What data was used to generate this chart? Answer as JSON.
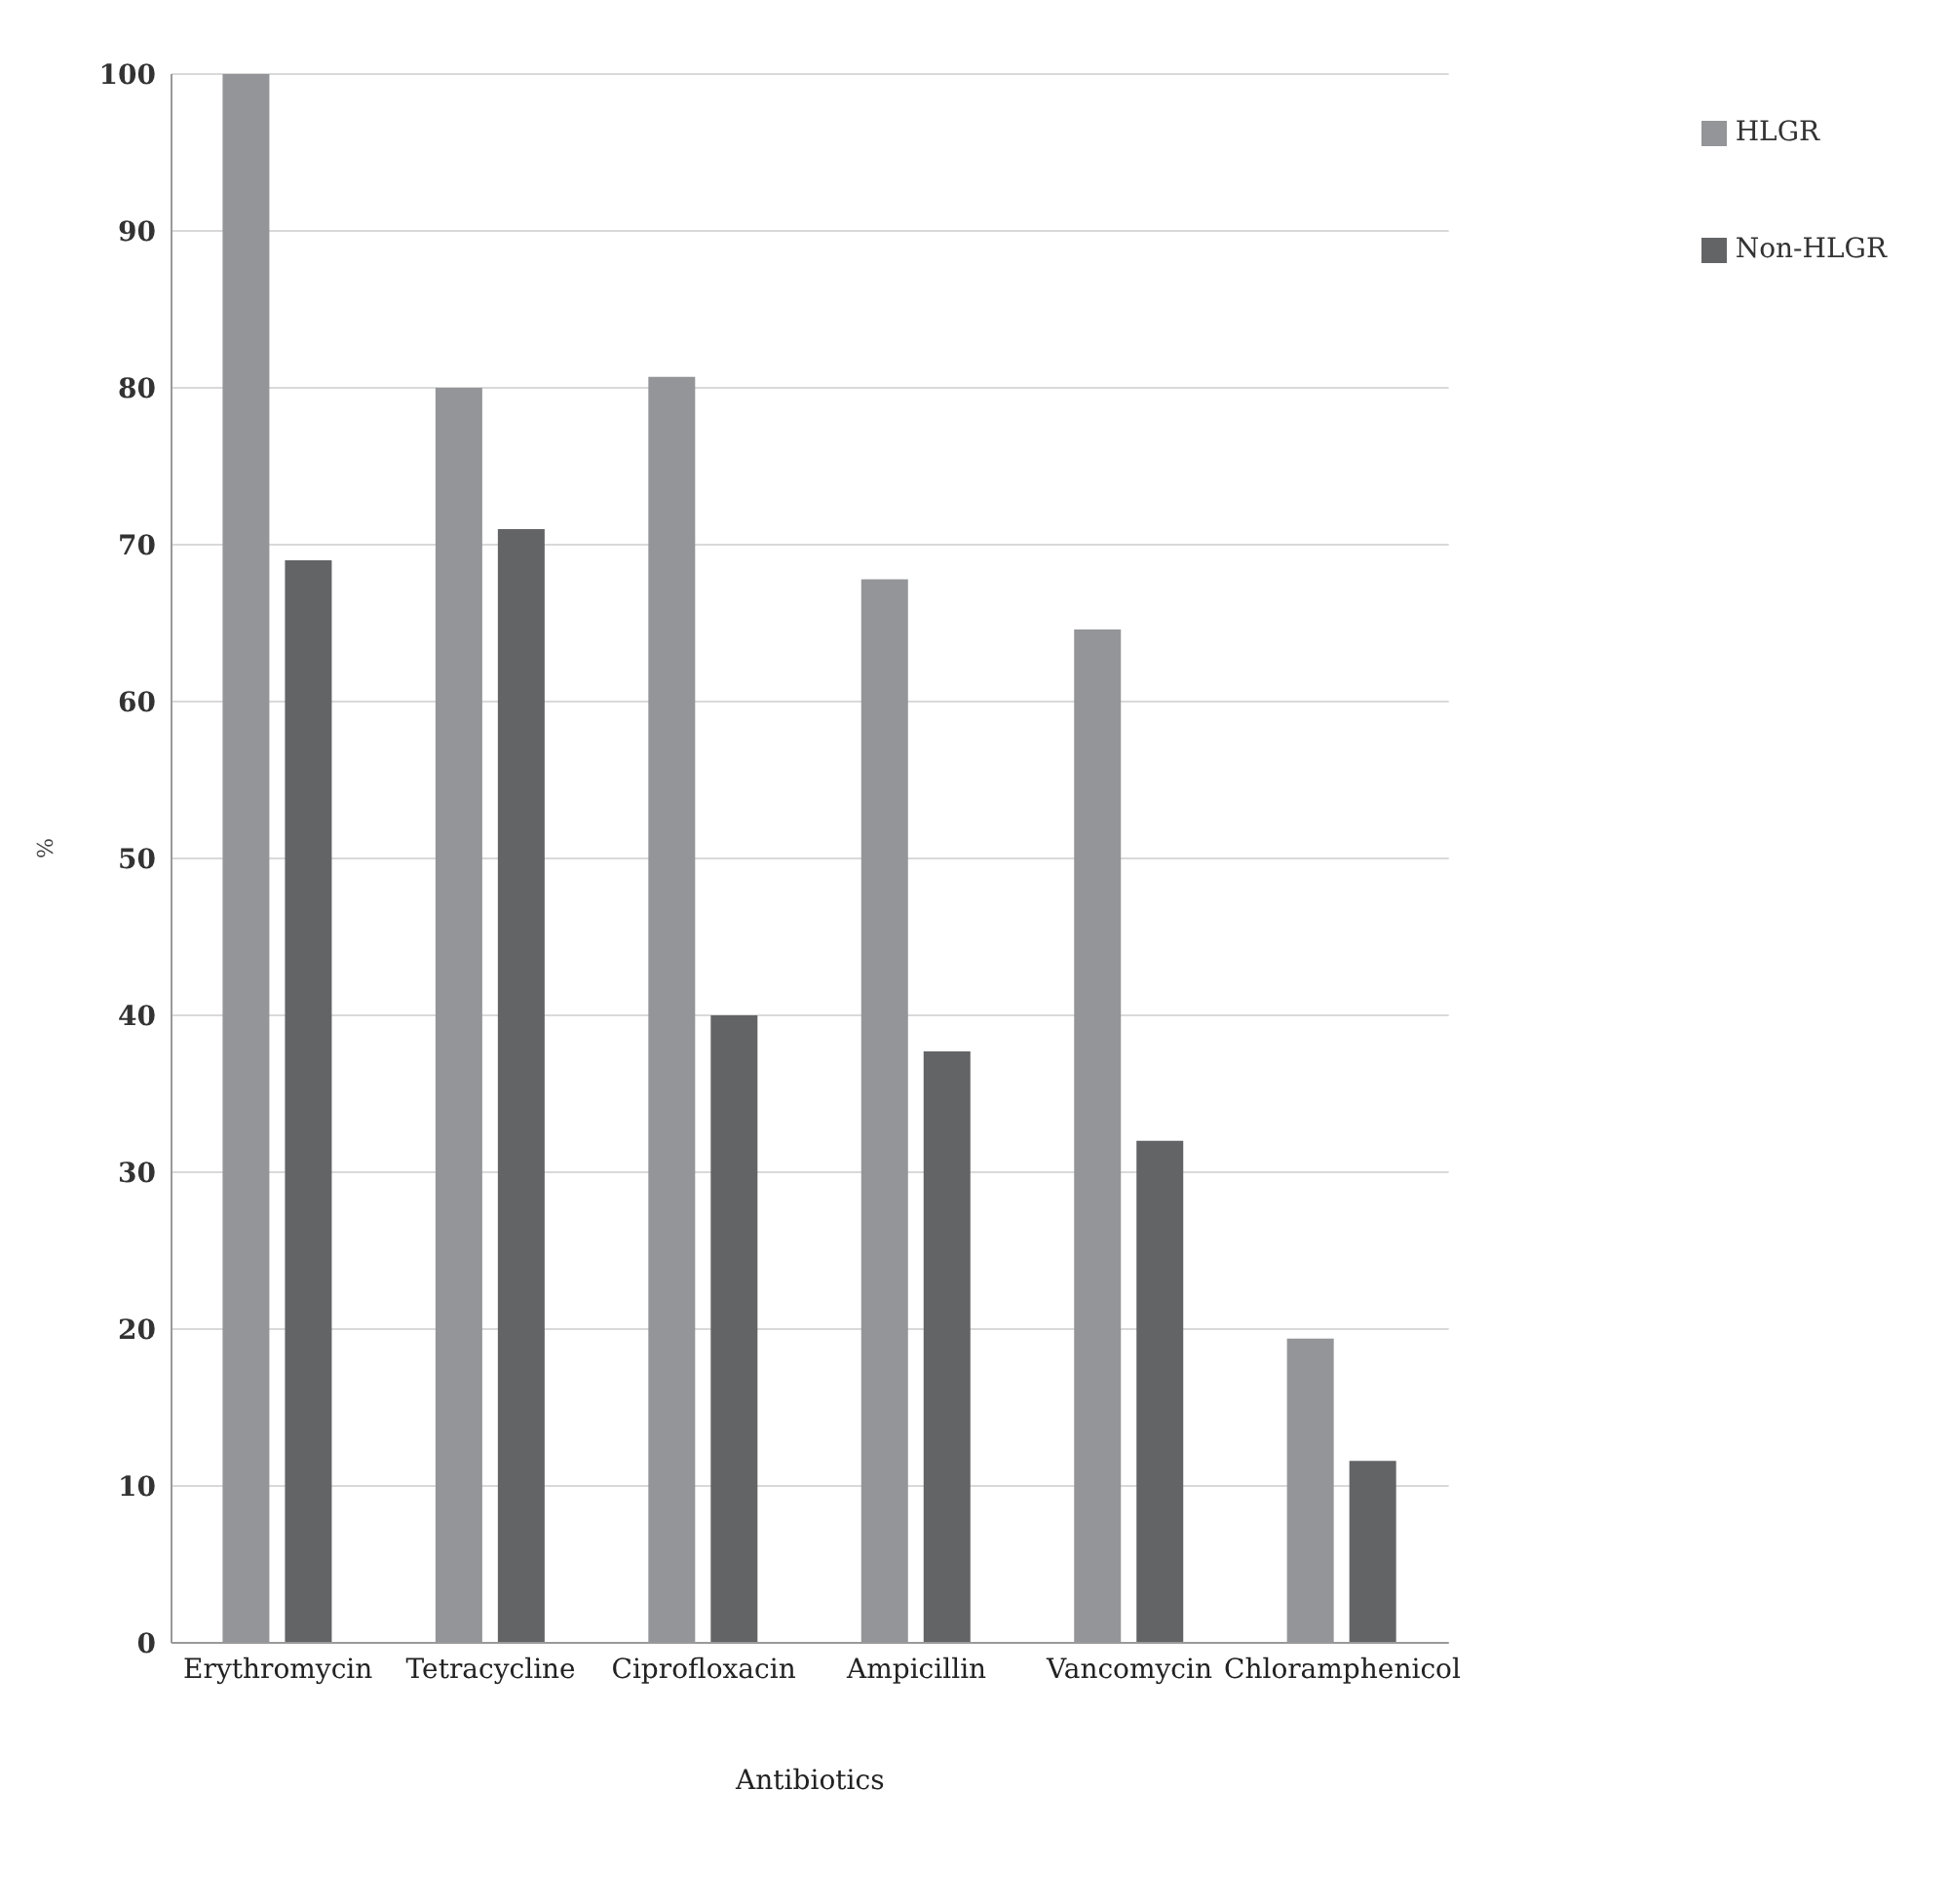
{
  "chart_data": {
    "type": "bar",
    "xlabel": "Antibiotics",
    "ylabel": "%",
    "categories": [
      "Erythromycin",
      "Tetracycline",
      "Ciprofloxacin",
      "Ampicillin",
      "Vancomycin",
      "Chloramphenicol"
    ],
    "series": [
      {
        "name": "HLGR",
        "color": "#939598",
        "values": [
          100,
          80,
          80.7,
          67.8,
          64.6,
          19.4
        ]
      },
      {
        "name": "Non-HLGR",
        "color": "#636466",
        "values": [
          69,
          71,
          40,
          37.7,
          32,
          11.6
        ]
      }
    ],
    "ylim": [
      0,
      100
    ],
    "yticks": [
      0,
      10,
      20,
      30,
      40,
      50,
      60,
      70,
      80,
      90,
      100
    ],
    "grid": "y",
    "legend": "top right"
  }
}
